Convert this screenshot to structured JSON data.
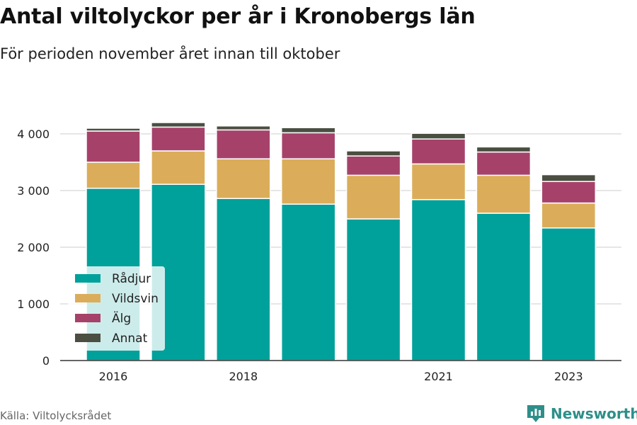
{
  "header": {
    "title": "Antal viltolyckor per år i Kronobergs län",
    "subtitle": "För perioden november året innan till oktober"
  },
  "footer": {
    "source": "Källa: Viltolycksrådet",
    "brand": "Newsworthy",
    "brand_icon": "bar-chart-logo-icon"
  },
  "colors": {
    "radjur": "#00a19a",
    "vildsvin": "#dbad5a",
    "alg": "#a6426a",
    "annat": "#4a4f42",
    "grid": "#dddddd",
    "axis": "#333333"
  },
  "chart_data": {
    "type": "bar",
    "stacked": true,
    "title": "Antal viltolyckor per år i Kronobergs län",
    "subtitle": "För perioden november året innan till oktober",
    "xlabel": "",
    "ylabel": "",
    "categories": [
      "2016",
      "2017",
      "2018",
      "2019",
      "2020",
      "2021",
      "2022",
      "2023"
    ],
    "x_tick_labels": [
      "2016",
      "2018",
      "2021",
      "2023"
    ],
    "y_ticks": [
      0,
      1000,
      2000,
      3000,
      4000
    ],
    "y_tick_labels": [
      "0",
      "1 000",
      "2 000",
      "3 000",
      "4 000"
    ],
    "ylim": [
      0,
      4300
    ],
    "grid": true,
    "legend_position": "bottom-left",
    "series": [
      {
        "name": "Rådjur",
        "color": "#00a19a",
        "values": [
          3040,
          3110,
          2860,
          2760,
          2500,
          2840,
          2600,
          2340
        ]
      },
      {
        "name": "Vildsvin",
        "color": "#dbad5a",
        "values": [
          460,
          590,
          700,
          800,
          770,
          630,
          670,
          440
        ]
      },
      {
        "name": "Älg",
        "color": "#a6426a",
        "values": [
          550,
          420,
          510,
          460,
          340,
          440,
          410,
          380
        ]
      },
      {
        "name": "Annat",
        "color": "#4a4f42",
        "values": [
          50,
          80,
          70,
          90,
          90,
          100,
          90,
          120
        ]
      }
    ]
  }
}
